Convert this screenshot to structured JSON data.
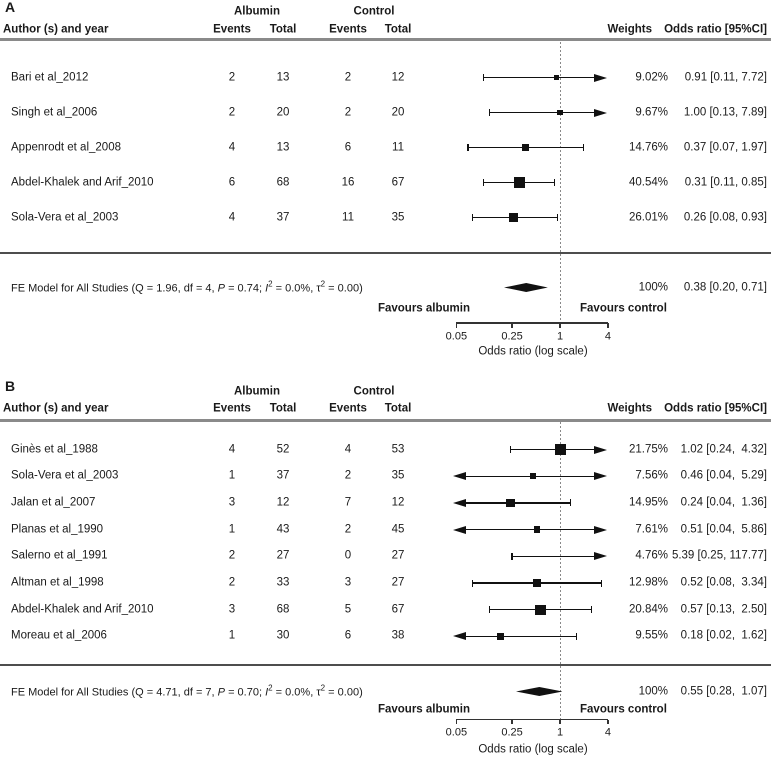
{
  "colors": {
    "text": "#1a1a1a",
    "plot_ink": "#111111",
    "header_rule": "#8a8a8a",
    "summary_rule": "#4d4d4d",
    "reference_line": "#888888",
    "background": "#ffffff"
  },
  "chart_data": [
    {
      "type": "forest",
      "panel_label": "A",
      "columns": {
        "author": "Author (s) and year",
        "group1": "Albumin",
        "group2": "Control",
        "events": "Events",
        "total": "Total",
        "weights": "Weights",
        "or": "Odds ratio [95%CI]"
      },
      "x_axis": {
        "label": "Odds ratio (log scale)",
        "scale": "log",
        "ticks": [
          0.05,
          0.25,
          1,
          4
        ],
        "tick_labels": [
          "0.05",
          "0.25",
          "1",
          "4"
        ],
        "clip": [
          0.05,
          4
        ],
        "reference_line": 1
      },
      "favours": {
        "left": "Favours albumin",
        "right": "Favours control"
      },
      "studies": [
        {
          "author": "Bari et al_2012",
          "albumin_events": 2,
          "albumin_total": 13,
          "control_events": 2,
          "control_total": 12,
          "weight": 9.02,
          "weight_label": "9.02%",
          "or": 0.91,
          "ci_low": 0.11,
          "ci_high": 7.72,
          "or_label": "0.91 [0.11, 7.72]"
        },
        {
          "author": "Singh et al_2006",
          "albumin_events": 2,
          "albumin_total": 20,
          "control_events": 2,
          "control_total": 20,
          "weight": 9.67,
          "weight_label": "9.67%",
          "or": 1.0,
          "ci_low": 0.13,
          "ci_high": 7.89,
          "or_label": "1.00 [0.13, 7.89]"
        },
        {
          "author": "Appenrodt et al_2008",
          "albumin_events": 4,
          "albumin_total": 13,
          "control_events": 6,
          "control_total": 11,
          "weight": 14.76,
          "weight_label": "14.76%",
          "or": 0.37,
          "ci_low": 0.07,
          "ci_high": 1.97,
          "or_label": "0.37 [0.07, 1.97]"
        },
        {
          "author": "Abdel-Khalek and Arif_2010",
          "albumin_events": 6,
          "albumin_total": 68,
          "control_events": 16,
          "control_total": 67,
          "weight": 40.54,
          "weight_label": "40.54%",
          "or": 0.31,
          "ci_low": 0.11,
          "ci_high": 0.85,
          "or_label": "0.31 [0.11, 0.85]"
        },
        {
          "author": "Sola-Vera et al_2003",
          "albumin_events": 4,
          "albumin_total": 37,
          "control_events": 11,
          "control_total": 35,
          "weight": 26.01,
          "weight_label": "26.01%",
          "or": 0.26,
          "ci_low": 0.08,
          "ci_high": 0.93,
          "or_label": "0.26 [0.08, 0.93]"
        }
      ],
      "summary": {
        "model_label_parts": [
          {
            "text": "FE Model for All Studies (Q = 1.96, df = 4, "
          },
          {
            "text": "P",
            "italic": true
          },
          {
            "text": " = 0.74; "
          },
          {
            "text": "I",
            "italic": true
          },
          {
            "text": "2",
            "sup": true
          },
          {
            "text": " = 0.0%, τ"
          },
          {
            "text": "2",
            "sup": true
          },
          {
            "text": " = 0.00)"
          }
        ],
        "weight_label": "100%",
        "or": 0.38,
        "ci_low": 0.2,
        "ci_high": 0.71,
        "or_label": "0.38 [0.20, 0.71]"
      }
    },
    {
      "type": "forest",
      "panel_label": "B",
      "columns": {
        "author": "Author (s) and year",
        "group1": "Albumin",
        "group2": "Control",
        "events": "Events",
        "total": "Total",
        "weights": "Weights",
        "or": "Odds ratio [95%CI]"
      },
      "x_axis": {
        "label": "Odds ratio (log scale)",
        "scale": "log",
        "ticks": [
          0.05,
          0.25,
          1,
          4
        ],
        "tick_labels": [
          "0.05",
          "0.25",
          "1",
          "4"
        ],
        "clip": [
          0.05,
          4
        ],
        "reference_line": 1
      },
      "favours": {
        "left": "Favours albumin",
        "right": "Favours control"
      },
      "studies": [
        {
          "author": "Ginès et al_1988",
          "albumin_events": 4,
          "albumin_total": 52,
          "control_events": 4,
          "control_total": 53,
          "weight": 21.75,
          "weight_label": "21.75%",
          "or": 1.02,
          "ci_low": 0.24,
          "ci_high": 4.32,
          "or_label": "1.02 [0.24,  4.32]"
        },
        {
          "author": "Sola-Vera et al_2003",
          "albumin_events": 1,
          "albumin_total": 37,
          "control_events": 2,
          "control_total": 35,
          "weight": 7.56,
          "weight_label": "7.56%",
          "or": 0.46,
          "ci_low": 0.04,
          "ci_high": 5.29,
          "or_label": "0.46 [0.04,  5.29]"
        },
        {
          "author": "Jalan et al_2007",
          "albumin_events": 3,
          "albumin_total": 12,
          "control_events": 7,
          "control_total": 12,
          "weight": 14.95,
          "weight_label": "14.95%",
          "or": 0.24,
          "ci_low": 0.04,
          "ci_high": 1.36,
          "or_label": "0.24 [0.04,  1.36]"
        },
        {
          "author": "Planas et al_1990",
          "albumin_events": 1,
          "albumin_total": 43,
          "control_events": 2,
          "control_total": 45,
          "weight": 7.61,
          "weight_label": "7.61%",
          "or": 0.51,
          "ci_low": 0.04,
          "ci_high": 5.86,
          "or_label": "0.51 [0.04,  5.86]"
        },
        {
          "author": "Salerno et al_1991",
          "albumin_events": 2,
          "albumin_total": 27,
          "control_events": 0,
          "control_total": 27,
          "weight": 4.76,
          "weight_label": "4.76%",
          "or": 5.39,
          "ci_low": 0.25,
          "ci_high": 117.77,
          "or_label": "5.39 [0.25, 117.77]"
        },
        {
          "author": "Altman et al_1998",
          "albumin_events": 2,
          "albumin_total": 33,
          "control_events": 3,
          "control_total": 27,
          "weight": 12.98,
          "weight_label": "12.98%",
          "or": 0.52,
          "ci_low": 0.08,
          "ci_high": 3.34,
          "or_label": "0.52 [0.08,  3.34]"
        },
        {
          "author": "Abdel-Khalek and Arif_2010",
          "albumin_events": 3,
          "albumin_total": 68,
          "control_events": 5,
          "control_total": 67,
          "weight": 20.84,
          "weight_label": "20.84%",
          "or": 0.57,
          "ci_low": 0.13,
          "ci_high": 2.5,
          "or_label": "0.57 [0.13,  2.50]"
        },
        {
          "author": "Moreau et al_2006",
          "albumin_events": 1,
          "albumin_total": 30,
          "control_events": 6,
          "control_total": 38,
          "weight": 9.55,
          "weight_label": "9.55%",
          "or": 0.18,
          "ci_low": 0.02,
          "ci_high": 1.62,
          "or_label": "0.18 [0.02,  1.62]"
        }
      ],
      "summary": {
        "model_label_parts": [
          {
            "text": "FE Model for All Studies (Q = 4.71, df = 7, "
          },
          {
            "text": "P",
            "italic": true
          },
          {
            "text": " = 0.70; "
          },
          {
            "text": "I",
            "italic": true
          },
          {
            "text": "2",
            "sup": true
          },
          {
            "text": " = 0.0%, τ"
          },
          {
            "text": "2",
            "sup": true
          },
          {
            "text": " = 0.00)"
          }
        ],
        "weight_label": "100%",
        "or": 0.55,
        "ci_low": 0.28,
        "ci_high": 1.07,
        "or_label": "0.55 [0.28,  1.07]"
      }
    }
  ]
}
